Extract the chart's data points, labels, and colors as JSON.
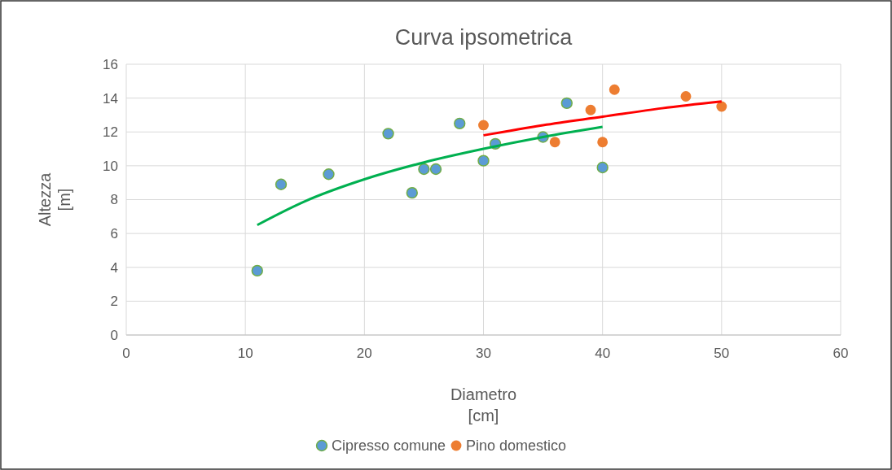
{
  "chart_data": {
    "type": "scatter",
    "title": "Curva ipsometrica",
    "xlabel": "Diametro\n[cm]",
    "ylabel": "Altezza\n[m]",
    "xlim": [
      0,
      60
    ],
    "xticks": [
      0,
      10,
      20,
      30,
      40,
      50,
      60
    ],
    "ylim": [
      0,
      16
    ],
    "yticks": [
      0,
      2,
      4,
      6,
      8,
      10,
      12,
      14,
      16
    ],
    "grid": true,
    "legend": "bottom",
    "series": [
      {
        "name": "Cipresso comune",
        "color": "#5b9bd5",
        "marker": "circle",
        "x": [
          11,
          13,
          17,
          22,
          24,
          25,
          26,
          28,
          30,
          31,
          35,
          37,
          40
        ],
        "values": [
          3.8,
          8.9,
          9.5,
          11.9,
          8.4,
          9.8,
          9.8,
          12.5,
          10.3,
          11.3,
          11.7,
          13.7,
          9.9
        ]
      },
      {
        "name": "Pino domestico",
        "color": "#ed7d31",
        "marker": "circle",
        "x": [
          30,
          36,
          39,
          40,
          41,
          47,
          50
        ],
        "values": [
          12.4,
          11.4,
          13.3,
          11.4,
          14.5,
          14.1,
          13.5
        ]
      },
      {
        "type": "line",
        "marker": "none",
        "color": "#00b050",
        "x": [
          11,
          15,
          20,
          25,
          30,
          35,
          40
        ],
        "values": [
          6.5,
          7.9,
          9.2,
          10.2,
          11.0,
          11.7,
          12.3
        ]
      },
      {
        "type": "line",
        "marker": "none",
        "color": "#ff0000",
        "x": [
          30,
          35,
          40,
          45,
          50
        ],
        "values": [
          11.8,
          12.4,
          12.9,
          13.4,
          13.8
        ]
      }
    ]
  }
}
